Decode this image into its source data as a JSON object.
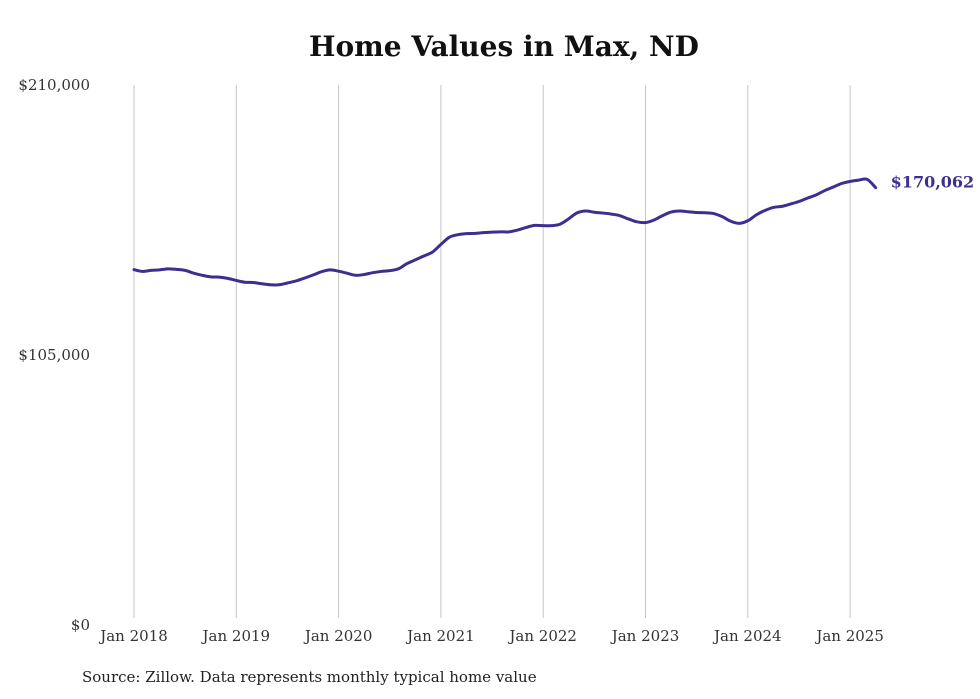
{
  "title": "Home Values in Max, ND",
  "source": "Source: Zillow. Data represents monthly typical home value",
  "colors": {
    "line": "#3b2f8f",
    "grid": "#c4c4c4",
    "text": "#333333"
  },
  "chart_data": {
    "type": "line",
    "title": "Home Values in Max, ND",
    "xlabel": "",
    "ylabel": "",
    "ylim": [
      0,
      210000
    ],
    "y_ticks": [
      0,
      105000,
      210000
    ],
    "y_tick_labels": [
      "$0",
      "$105,000",
      "$210,000"
    ],
    "x_ticks": [
      "2018-01",
      "2019-01",
      "2020-01",
      "2021-01",
      "2022-01",
      "2023-01",
      "2024-01",
      "2025-01"
    ],
    "x_tick_labels": [
      "Jan 2018",
      "Jan 2019",
      "Jan 2020",
      "Jan 2021",
      "Jan 2022",
      "Jan 2023",
      "Jan 2024",
      "Jan 2025"
    ],
    "grid": "vertical",
    "end_label": "$170,062",
    "series": [
      {
        "x": [
          "2018-01",
          "2018-02",
          "2018-03",
          "2018-04",
          "2018-05",
          "2018-06",
          "2018-07",
          "2018-08",
          "2018-09",
          "2018-10",
          "2018-11",
          "2018-12",
          "2019-01",
          "2019-02",
          "2019-03",
          "2019-04",
          "2019-05",
          "2019-06",
          "2019-07",
          "2019-08",
          "2019-09",
          "2019-10",
          "2019-11",
          "2019-12",
          "2020-01",
          "2020-02",
          "2020-03",
          "2020-04",
          "2020-05",
          "2020-06",
          "2020-07",
          "2020-08",
          "2020-09",
          "2020-10",
          "2020-11",
          "2020-12",
          "2021-01",
          "2021-02",
          "2021-03",
          "2021-04",
          "2021-05",
          "2021-06",
          "2021-07",
          "2021-08",
          "2021-09",
          "2021-10",
          "2021-11",
          "2021-12",
          "2022-01",
          "2022-02",
          "2022-03",
          "2022-04",
          "2022-05",
          "2022-06",
          "2022-07",
          "2022-08",
          "2022-09",
          "2022-10",
          "2022-11",
          "2022-12",
          "2023-01",
          "2023-02",
          "2023-03",
          "2023-04",
          "2023-05",
          "2023-06",
          "2023-07",
          "2023-08",
          "2023-09",
          "2023-10",
          "2023-11",
          "2023-12",
          "2024-01",
          "2024-02",
          "2024-03",
          "2024-04",
          "2024-05",
          "2024-06",
          "2024-07",
          "2024-08",
          "2024-09",
          "2024-10",
          "2024-11",
          "2024-12",
          "2025-01",
          "2025-02",
          "2025-03",
          "2025-04"
        ],
        "values": [
          138200,
          137500,
          137900,
          138100,
          138500,
          138300,
          137900,
          136800,
          136000,
          135400,
          135300,
          134800,
          134000,
          133300,
          133200,
          132700,
          132300,
          132300,
          133000,
          133800,
          134900,
          136100,
          137400,
          138100,
          137600,
          136800,
          136000,
          136300,
          137000,
          137500,
          137800,
          138500,
          140500,
          142000,
          143500,
          145000,
          148000,
          150800,
          151800,
          152200,
          152300,
          152600,
          152800,
          152900,
          152900,
          153600,
          154600,
          155400,
          155300,
          155300,
          155900,
          158000,
          160300,
          161000,
          160500,
          160200,
          159800,
          159200,
          157900,
          156800,
          156500,
          157500,
          159200,
          160600,
          161000,
          160700,
          160400,
          160300,
          160000,
          158800,
          157000,
          156200,
          157200,
          159500,
          161200,
          162400,
          162800,
          163700,
          164700,
          166000,
          167200,
          168900,
          170300,
          171700,
          172500,
          173000,
          173300,
          170062
        ]
      }
    ]
  }
}
